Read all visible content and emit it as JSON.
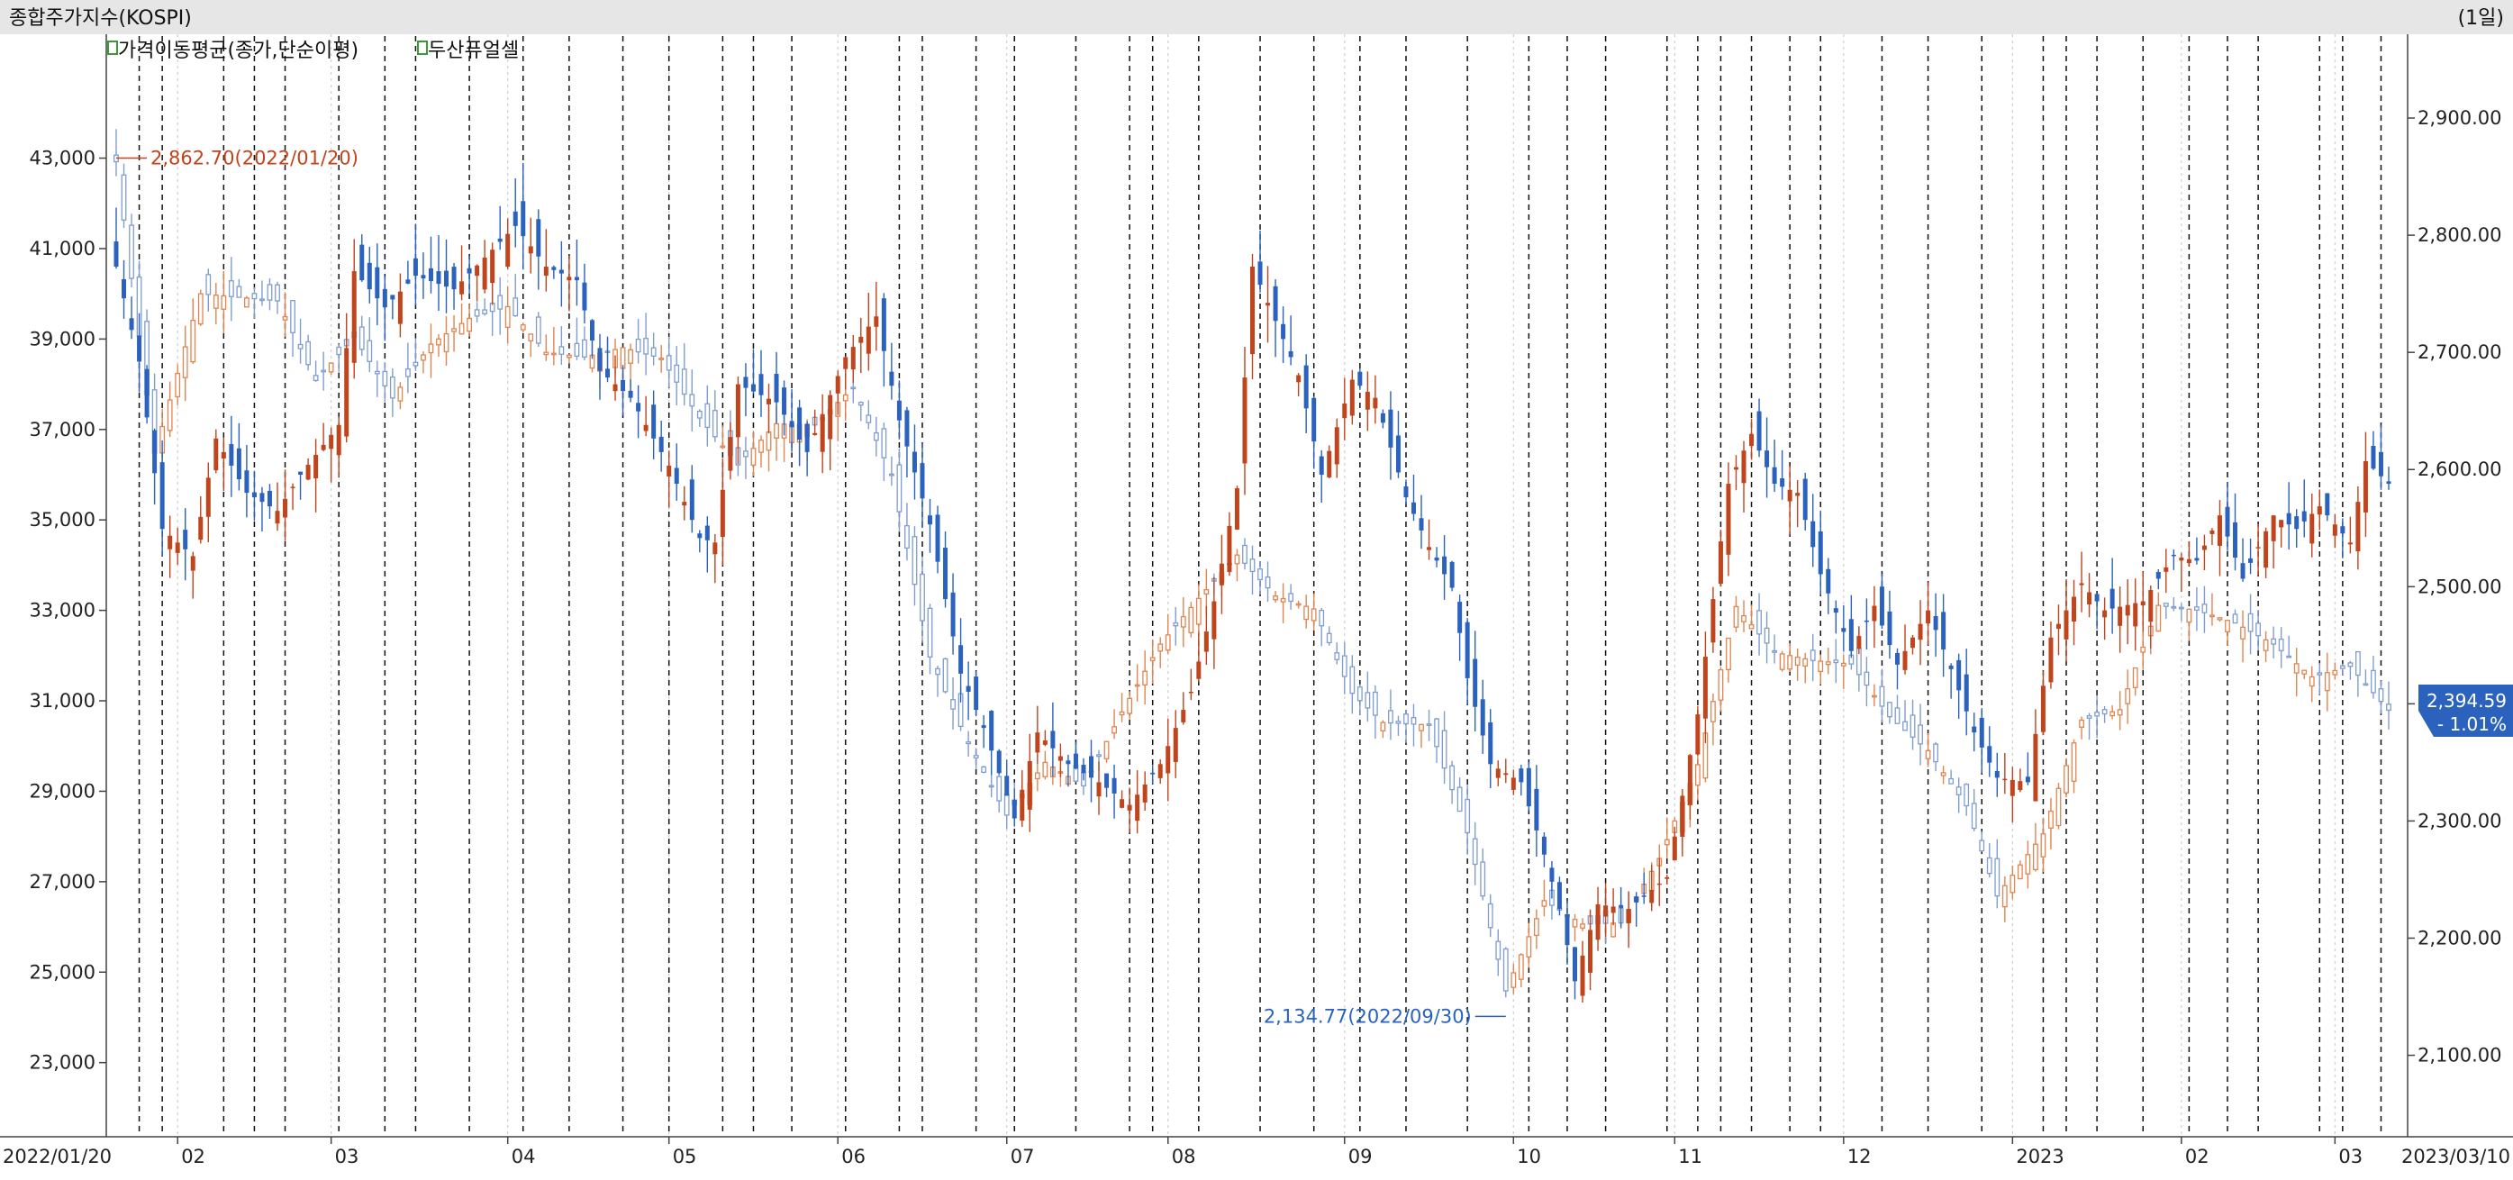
{
  "header": {
    "title": "종합주가지수(KOSPI)",
    "period": "(1일)"
  },
  "legend": {
    "item1": "가격이동평균(종가,단순이평)",
    "item2": "두산퓨얼셀"
  },
  "colors": {
    "up": "#c0441c",
    "down": "#2a62be",
    "kospi_up": "#e0854f",
    "kospi_down": "#7f9dcf",
    "background": "#ffffff",
    "header_bg": "#e6e6e6",
    "current_badge": "#2a62be"
  },
  "annotations": {
    "high_label": "2,862.70(2022/01/20)",
    "low_label": "2,134.77(2022/09/30)",
    "current_price": "2,394.59",
    "current_change": "- 1.01%"
  },
  "chart_data": {
    "type": "candlestick",
    "left_axis": {
      "ticks": [
        43000,
        41000,
        39000,
        37000,
        35000,
        33000,
        31000,
        29000,
        27000,
        25000,
        23000
      ],
      "tick_labels": [
        "43,000",
        "41,000",
        "39,000",
        "37,000",
        "35,000",
        "33,000",
        "31,000",
        "29,000",
        "27,000",
        "25,000",
        "23,000"
      ],
      "range": [
        21400,
        45700
      ]
    },
    "right_axis": {
      "ticks": [
        2900,
        2800,
        2700,
        2600,
        2500,
        2400,
        2300,
        2200,
        2100
      ],
      "tick_labels": [
        "2,900.00",
        "2,800.00",
        "2,700.00",
        "2,600.00",
        "2,500.00",
        "2,400.00",
        "2,300.00",
        "2,200.00",
        "2,100.00"
      ],
      "range": [
        2032,
        2970
      ]
    },
    "x_axis": {
      "start_label": "2022/01/20",
      "end_label": "2023/03/10",
      "month_labels": [
        "02",
        "03",
        "04",
        "05",
        "06",
        "07",
        "08",
        "09",
        "10",
        "11",
        "12",
        "2023",
        "02",
        "03"
      ]
    },
    "doosan_fuelcell_close_keypoints": [
      [
        "2022/01/20",
        40600
      ],
      [
        "2022/01/25",
        38500
      ],
      [
        "2022/01/28",
        34800
      ],
      [
        "2022/02/03",
        34200
      ],
      [
        "2022/02/08",
        36800
      ],
      [
        "2022/02/14",
        35600
      ],
      [
        "2022/02/18",
        35200
      ],
      [
        "2022/02/23",
        36000
      ],
      [
        "2022/03/02",
        37100
      ],
      [
        "2022/03/04",
        40500
      ],
      [
        "2022/03/10",
        39700
      ],
      [
        "2022/03/16",
        40400
      ],
      [
        "2022/03/23",
        40100
      ],
      [
        "2022/03/29",
        40800
      ],
      [
        "2022/04/04",
        41500
      ],
      [
        "2022/04/08",
        40600
      ],
      [
        "2022/04/14",
        40300
      ],
      [
        "2022/04/19",
        38300
      ],
      [
        "2022/04/25",
        37700
      ],
      [
        "2022/05/02",
        36200
      ],
      [
        "2022/05/06",
        34600
      ],
      [
        "2022/05/10",
        34500
      ],
      [
        "2022/05/13",
        38000
      ],
      [
        "2022/05/20",
        37600
      ],
      [
        "2022/05/26",
        36500
      ],
      [
        "2022/06/02",
        38600
      ],
      [
        "2022/06/08",
        39500
      ],
      [
        "2022/06/13",
        37200
      ],
      [
        "2022/06/17",
        34900
      ],
      [
        "2022/06/23",
        31600
      ],
      [
        "2022/06/28",
        30400
      ],
      [
        "2022/07/04",
        28400
      ],
      [
        "2022/07/07",
        30300
      ],
      [
        "2022/07/13",
        29600
      ],
      [
        "2022/07/19",
        29200
      ],
      [
        "2022/07/25",
        28700
      ],
      [
        "2022/07/29",
        29600
      ],
      [
        "2022/08/04",
        31200
      ],
      [
        "2022/08/09",
        33200
      ],
      [
        "2022/08/12",
        35700
      ],
      [
        "2022/08/16",
        40600
      ],
      [
        "2022/08/19",
        39400
      ],
      [
        "2022/08/24",
        38200
      ],
      [
        "2022/08/29",
        36000
      ],
      [
        "2022/09/02",
        38100
      ],
      [
        "2022/09/07",
        37700
      ],
      [
        "2022/09/13",
        35500
      ],
      [
        "2022/09/16",
        34400
      ],
      [
        "2022/09/21",
        33500
      ],
      [
        "2022/09/23",
        31500
      ],
      [
        "2022/09/28",
        29600
      ],
      [
        "2022/10/04",
        29200
      ],
      [
        "2022/10/07",
        27600
      ],
      [
        "2022/10/11",
        26400
      ],
      [
        "2022/10/13",
        24800
      ],
      [
        "2022/10/18",
        26500
      ],
      [
        "2022/10/24",
        26400
      ],
      [
        "2022/10/31",
        27100
      ],
      [
        "2022/11/04",
        30700
      ],
      [
        "2022/11/10",
        35800
      ],
      [
        "2022/11/15",
        36900
      ],
      [
        "2022/11/18",
        35800
      ],
      [
        "2022/11/23",
        35600
      ],
      [
        "2022/11/28",
        33800
      ],
      [
        "2022/12/02",
        32100
      ],
      [
        "2022/12/07",
        33100
      ],
      [
        "2022/12/12",
        31800
      ],
      [
        "2022/12/16",
        33000
      ],
      [
        "2022/12/21",
        31700
      ],
      [
        "2022/12/26",
        30300
      ],
      [
        "2022/12/29",
        29300
      ],
      [
        "2023/01/04",
        29200
      ],
      [
        "2023/01/09",
        32400
      ],
      [
        "2023/01/13",
        33600
      ],
      [
        "2023/01/18",
        33000
      ],
      [
        "2023/01/25",
        33200
      ],
      [
        "2023/01/31",
        34200
      ],
      [
        "2023/02/03",
        34100
      ],
      [
        "2023/02/08",
        35100
      ],
      [
        "2023/02/13",
        33700
      ],
      [
        "2023/02/17",
        35100
      ],
      [
        "2023/02/22",
        34800
      ],
      [
        "2023/02/27",
        35300
      ],
      [
        "2023/03/03",
        34500
      ],
      [
        "2023/03/07",
        36300
      ],
      [
        "2023/03/10",
        35800
      ]
    ],
    "kospi_close_keypoints": [
      [
        "2022/01/20",
        2862.7
      ],
      [
        "2022/01/27",
        2614
      ],
      [
        "2022/02/04",
        2750
      ],
      [
        "2022/02/11",
        2747
      ],
      [
        "2022/02/18",
        2744
      ],
      [
        "2022/02/25",
        2676
      ],
      [
        "2022/03/04",
        2713
      ],
      [
        "2022/03/11",
        2661
      ],
      [
        "2022/03/18",
        2707
      ],
      [
        "2022/03/25",
        2729
      ],
      [
        "2022/04/01",
        2739
      ],
      [
        "2022/04/08",
        2700
      ],
      [
        "2022/04/15",
        2696
      ],
      [
        "2022/04/22",
        2704
      ],
      [
        "2022/04/29",
        2695
      ],
      [
        "2022/05/06",
        2644
      ],
      [
        "2022/05/13",
        2604
      ],
      [
        "2022/05/20",
        2639
      ],
      [
        "2022/05/27",
        2638
      ],
      [
        "2022/06/03",
        2670
      ],
      [
        "2022/06/10",
        2595
      ],
      [
        "2022/06/17",
        2440
      ],
      [
        "2022/06/24",
        2366
      ],
      [
        "2022/07/01",
        2305
      ],
      [
        "2022/07/08",
        2350
      ],
      [
        "2022/07/15",
        2330
      ],
      [
        "2022/07/22",
        2393
      ],
      [
        "2022/07/29",
        2451
      ],
      [
        "2022/08/05",
        2490
      ],
      [
        "2022/08/12",
        2527
      ],
      [
        "2022/08/19",
        2492
      ],
      [
        "2022/08/26",
        2481
      ],
      [
        "2022/09/02",
        2409
      ],
      [
        "2022/09/08",
        2384
      ],
      [
        "2022/09/16",
        2382
      ],
      [
        "2022/09/23",
        2290
      ],
      [
        "2022/09/30",
        2155
      ],
      [
        "2022/10/07",
        2232
      ],
      [
        "2022/10/14",
        2212
      ],
      [
        "2022/10/21",
        2213
      ],
      [
        "2022/10/28",
        2268
      ],
      [
        "2022/11/04",
        2348
      ],
      [
        "2022/11/11",
        2483
      ],
      [
        "2022/11/18",
        2444
      ],
      [
        "2022/11/25",
        2437
      ],
      [
        "2022/12/02",
        2434
      ],
      [
        "2022/12/09",
        2389
      ],
      [
        "2022/12/16",
        2360
      ],
      [
        "2022/12/23",
        2313
      ],
      [
        "2022/12/29",
        2236
      ],
      [
        "2023/01/06",
        2289
      ],
      [
        "2023/01/13",
        2386
      ],
      [
        "2023/01/20",
        2395
      ],
      [
        "2023/01/27",
        2484
      ],
      [
        "2023/02/03",
        2480
      ],
      [
        "2023/02/10",
        2469
      ],
      [
        "2023/02/17",
        2451
      ],
      [
        "2023/02/24",
        2423
      ],
      [
        "2023/03/03",
        2432
      ],
      [
        "2023/03/10",
        2394.59
      ]
    ]
  }
}
